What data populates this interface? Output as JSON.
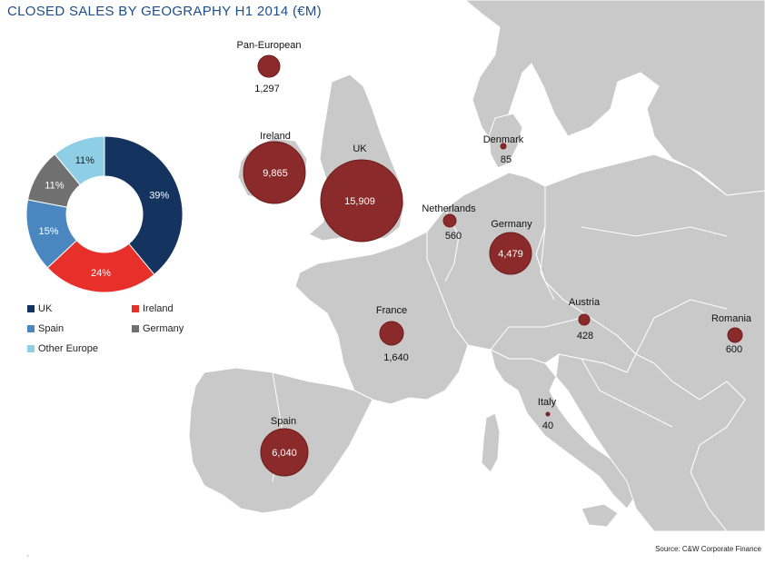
{
  "title": "CLOSED SALES BY GEOGRAPHY H1 2014 (€M)",
  "source": "Source: C&W Corporate Finance",
  "footer_mark": "‘",
  "colors": {
    "land": "#c9c9c9",
    "sea": "#ffffff",
    "bubble": "#8b2a2a",
    "bubble_stroke": "#6e1c1c"
  },
  "bubbles": [
    {
      "name": "Pan-European",
      "value": 1297,
      "value_label": "1,297",
      "label_pos": "outside"
    },
    {
      "name": "Ireland",
      "value": 9865,
      "value_label": "9,865",
      "label_pos": "inside"
    },
    {
      "name": "UK",
      "value": 15909,
      "value_label": "15,909",
      "label_pos": "inside"
    },
    {
      "name": "Denmark",
      "value": 85,
      "value_label": "85",
      "label_pos": "outside"
    },
    {
      "name": "Netherlands",
      "value": 560,
      "value_label": "560",
      "label_pos": "outside"
    },
    {
      "name": "Germany",
      "value": 4479,
      "value_label": "4,479",
      "label_pos": "inside"
    },
    {
      "name": "France",
      "value": 1640,
      "value_label": "1,640",
      "label_pos": "outside"
    },
    {
      "name": "Austria",
      "value": 428,
      "value_label": "428",
      "label_pos": "outside"
    },
    {
      "name": "Romania",
      "value": 600,
      "value_label": "600",
      "label_pos": "outside"
    },
    {
      "name": "Italy",
      "value": 40,
      "value_label": "40",
      "label_pos": "outside"
    },
    {
      "name": "Spain",
      "value": 6040,
      "value_label": "6,040",
      "label_pos": "inside"
    }
  ],
  "chart_data": {
    "type": "pie",
    "donut": true,
    "categories": [
      "UK",
      "Ireland",
      "Spain",
      "Germany",
      "Other Europe"
    ],
    "values": [
      39,
      24,
      15,
      11,
      11
    ],
    "value_labels": [
      "39%",
      "24%",
      "15%",
      "11%",
      "11%"
    ],
    "colors": [
      "#14345f",
      "#e8302a",
      "#4a86c0",
      "#707070",
      "#8ecfe6"
    ],
    "legend_position": "bottom"
  }
}
